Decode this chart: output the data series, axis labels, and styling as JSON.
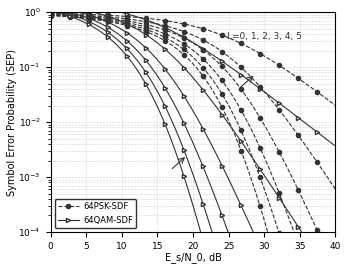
{
  "title": "",
  "xlabel": "E_s/N_0, dB",
  "ylabel": "Symbol Error Probability (SEP)",
  "xlim": [
    0,
    40
  ],
  "ylim_log": [
    -4,
    0
  ],
  "L_values": [
    0,
    1,
    2,
    3,
    4,
    5
  ],
  "annotation_text": "L=0, 1, 2, 3, 4, 5",
  "legend_psk": "64PSK-SDF",
  "legend_qam": "64QAM-SDF",
  "grid_color": "#aaaaaa",
  "line_color": "#333333",
  "bg_color": "#ffffff"
}
